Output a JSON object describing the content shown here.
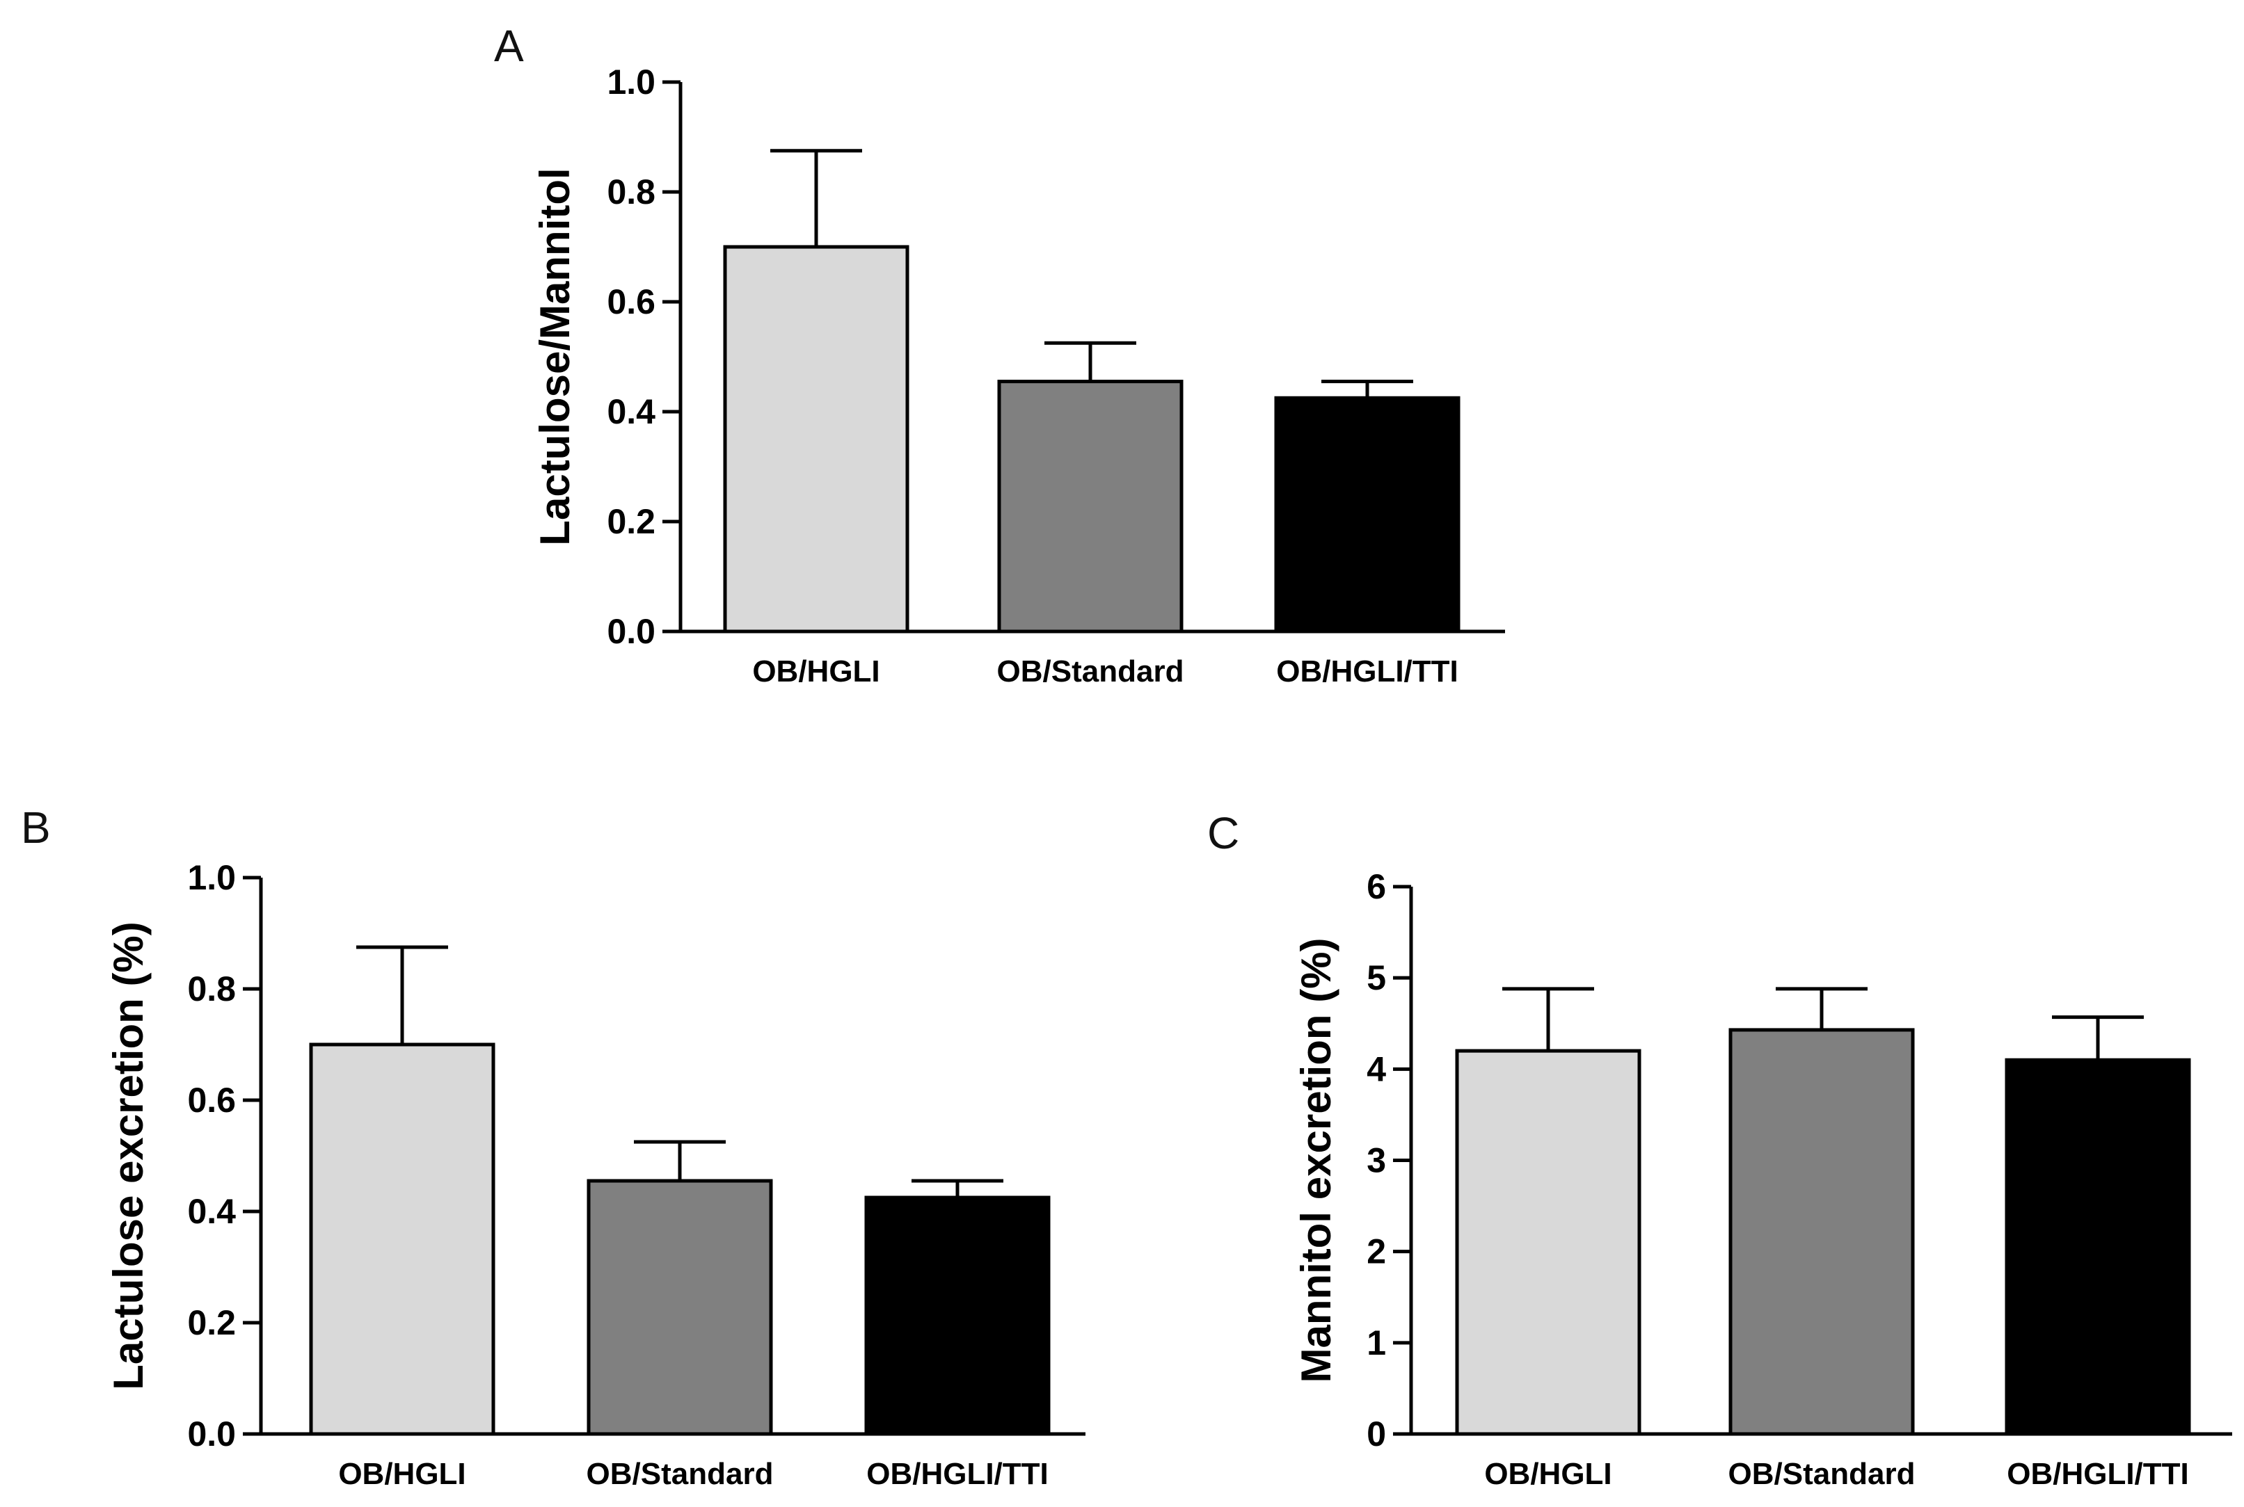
{
  "chart_data": [
    {
      "panel": "A",
      "type": "bar",
      "title": "",
      "xlabel": "",
      "ylabel": "Lactulose/Mannitol",
      "categories": [
        "OB/HGLI",
        "OB/Standard",
        "OB/HGLI/TTI"
      ],
      "values": [
        0.7,
        0.455,
        0.425
      ],
      "errors": [
        0.175,
        0.07,
        0.03
      ],
      "colors": [
        "#d9d9d9",
        "#808080",
        "#000000"
      ],
      "ylim": [
        0,
        1.0
      ],
      "yticks": [
        0.0,
        0.2,
        0.4,
        0.6,
        0.8,
        1.0
      ],
      "ytick_labels": [
        "0.0",
        "0.2",
        "0.4",
        "0.6",
        "0.8",
        "1.0"
      ],
      "grid": false,
      "legend": "none"
    },
    {
      "panel": "B",
      "type": "bar",
      "title": "",
      "xlabel": "",
      "ylabel": "Lactulose excretion (%)",
      "categories": [
        "OB/HGLI",
        "OB/Standard",
        "OB/HGLI/TTI"
      ],
      "values": [
        0.7,
        0.455,
        0.425
      ],
      "errors": [
        0.175,
        0.07,
        0.03
      ],
      "colors": [
        "#d9d9d9",
        "#808080",
        "#000000"
      ],
      "ylim": [
        0,
        1.0
      ],
      "yticks": [
        0.0,
        0.2,
        0.4,
        0.6,
        0.8,
        1.0
      ],
      "ytick_labels": [
        "0.0",
        "0.2",
        "0.4",
        "0.6",
        "0.8",
        "1.0"
      ],
      "grid": false,
      "legend": "none"
    },
    {
      "panel": "C",
      "type": "bar",
      "title": "",
      "xlabel": "",
      "ylabel": "Mannitol excretion (%)",
      "categories": [
        "OB/HGLI",
        "OB/Standard",
        "OB/HGLI/TTI"
      ],
      "values": [
        4.2,
        4.43,
        4.1
      ],
      "errors": [
        0.68,
        0.45,
        0.47
      ],
      "colors": [
        "#d9d9d9",
        "#808080",
        "#000000"
      ],
      "ylim": [
        0,
        6
      ],
      "yticks": [
        0,
        1,
        2,
        3,
        4,
        5,
        6
      ],
      "ytick_labels": [
        "0",
        "1",
        "2",
        "3",
        "4",
        "5",
        "6"
      ],
      "grid": false,
      "legend": "none"
    }
  ]
}
